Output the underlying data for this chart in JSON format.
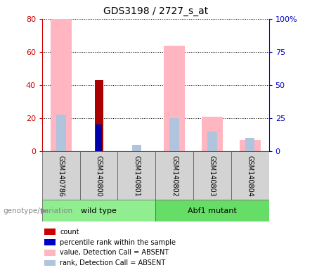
{
  "title": "GDS3198 / 2727_s_at",
  "samples": [
    "GSM140786",
    "GSM140800",
    "GSM140801",
    "GSM140802",
    "GSM140803",
    "GSM140804"
  ],
  "groups": [
    {
      "name": "wild type",
      "indices": [
        0,
        1,
        2
      ],
      "color": "#90ee90"
    },
    {
      "name": "Abf1 mutant",
      "indices": [
        3,
        4,
        5
      ],
      "color": "#66dd66"
    }
  ],
  "count_values": [
    0,
    43,
    0,
    0,
    0,
    0
  ],
  "percentile_rank_values": [
    0,
    16,
    0,
    0,
    0,
    0
  ],
  "value_absent": [
    80,
    0,
    0,
    64,
    21,
    7
  ],
  "rank_absent": [
    22,
    0,
    4,
    20,
    12,
    8
  ],
  "count_color": "#aa0000",
  "percentile_color": "#0000aa",
  "value_absent_color": "#ffb6c1",
  "rank_absent_color": "#b0c4de",
  "left_axis_color": "#cc0000",
  "right_axis_color": "#0000cc",
  "ylim_left": [
    0,
    80
  ],
  "ylim_right": [
    0,
    100
  ],
  "left_ticks": [
    0,
    20,
    40,
    60,
    80
  ],
  "right_ticks": [
    0,
    25,
    50,
    75,
    100
  ],
  "right_tick_labels": [
    "0",
    "25",
    "50",
    "75",
    "100%"
  ],
  "group_label": "genotype/variation",
  "legend_items": [
    {
      "color": "#cc0000",
      "label": "count"
    },
    {
      "color": "#0000cc",
      "label": "percentile rank within the sample"
    },
    {
      "color": "#ffb6c1",
      "label": "value, Detection Call = ABSENT"
    },
    {
      "color": "#b0c4de",
      "label": "rank, Detection Call = ABSENT"
    }
  ]
}
